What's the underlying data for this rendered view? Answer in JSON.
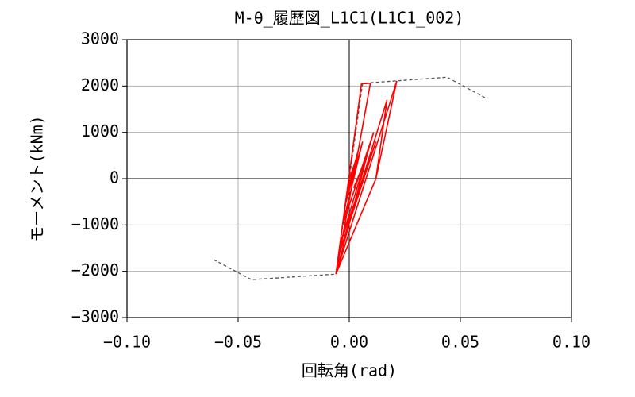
{
  "chart_data": {
    "type": "line",
    "title": "M-θ_履歴図_L1C1(L1C1_002)",
    "x_label": "回転角(rad)",
    "y_label": "モーメント(kNm)",
    "xlim": [
      -0.1,
      0.1
    ],
    "ylim": [
      -3000,
      3000
    ],
    "xticks": [
      {
        "value": -0.1,
        "label": "−0.10"
      },
      {
        "value": -0.05,
        "label": "−0.05"
      },
      {
        "value": 0,
        "label": "0.00"
      },
      {
        "value": 0.05,
        "label": "0.05"
      },
      {
        "value": 0.1,
        "label": "0.10"
      }
    ],
    "yticks": [
      {
        "value": -3000,
        "label": "−3000"
      },
      {
        "value": -2000,
        "label": "−2000"
      },
      {
        "value": -1000,
        "label": "−1000"
      },
      0,
      1000,
      2000,
      3000
    ],
    "grid": true,
    "series": [
      {
        "color": "#555555",
        "style": "dashed",
        "x": [
          -0.061,
          -0.044,
          -0.006,
          0.006,
          0.021,
          0.044,
          0.061
        ],
        "values": [
          -1750,
          -2180,
          -2060,
          2060,
          2110,
          2190,
          1750
        ]
      },
      {
        "color": "#ff0000",
        "style": "solid",
        "x": [
          0,
          0.003,
          -0.001,
          0.004,
          -0.002,
          0.006,
          -0.003,
          0.011,
          -0.004,
          0.012,
          -0.005,
          0.017,
          0.012,
          -0.006,
          0.0055,
          0.0095,
          -0.006,
          0.0214,
          0.012,
          -0.006,
          0.008,
          0.002
        ],
        "values": [
          0,
          400,
          -300,
          600,
          -600,
          800,
          -1000,
          1000,
          -1400,
          800,
          -1700,
          1700,
          0,
          -2060,
          2050,
          2060,
          -2060,
          2110,
          0,
          -2060,
          500,
          -200
        ]
      }
    ]
  }
}
